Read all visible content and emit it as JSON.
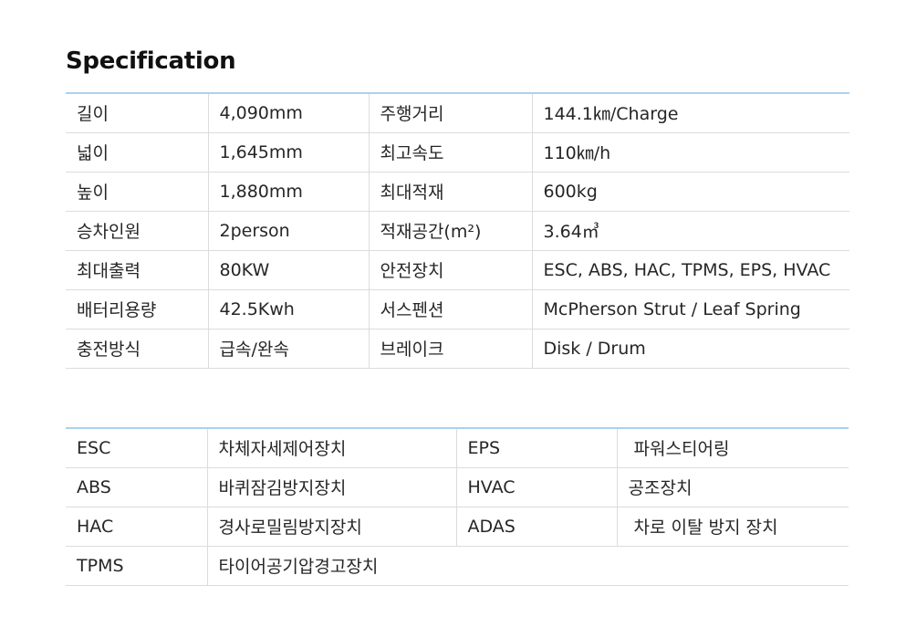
{
  "title": "Specification",
  "spec_table": {
    "rows": [
      {
        "label1": "길이",
        "value1": "4,090mm",
        "label2": "주행거리",
        "value2": "144.1㎞/Charge"
      },
      {
        "label1": "넓이",
        "value1": "1,645mm",
        "label2": "최고속도",
        "value2": "110㎞/h"
      },
      {
        "label1": "높이",
        "value1": "1,880mm",
        "label2": "최대적재",
        "value2": "600kg"
      },
      {
        "label1": "승차인원",
        "value1": "2person",
        "label2": "적재공간(m²)",
        "value2": "3.64㎥"
      },
      {
        "label1": "최대출력",
        "value1": "80KW",
        "label2": "안전장치",
        "value2": "ESC, ABS, HAC, TPMS, EPS, HVAC"
      },
      {
        "label1": "배터리용량",
        "value1": "42.5Kwh",
        "label2": "서스펜션",
        "value2": "McPherson Strut / Leaf Spring"
      },
      {
        "label1": "충전방식",
        "value1": "급속/완속",
        "label2": "브레이크",
        "value2": "Disk / Drum"
      }
    ]
  },
  "abbr_table": {
    "rows": [
      {
        "abbr1": "ESC",
        "desc1": "차체자세제어장치",
        "abbr2": "EPS",
        "desc2": " 파워스티어링"
      },
      {
        "abbr1": "ABS",
        "desc1": "바퀴잠김방지장치",
        "abbr2": "HVAC",
        "desc2": "공조장치"
      },
      {
        "abbr1": "HAC",
        "desc1": "경사로밀림방지장치",
        "abbr2": "ADAS",
        "desc2": " 차로 이탈 방지 장치"
      },
      {
        "abbr1": "TPMS",
        "desc1": "타이어공기압경고장치"
      }
    ]
  }
}
